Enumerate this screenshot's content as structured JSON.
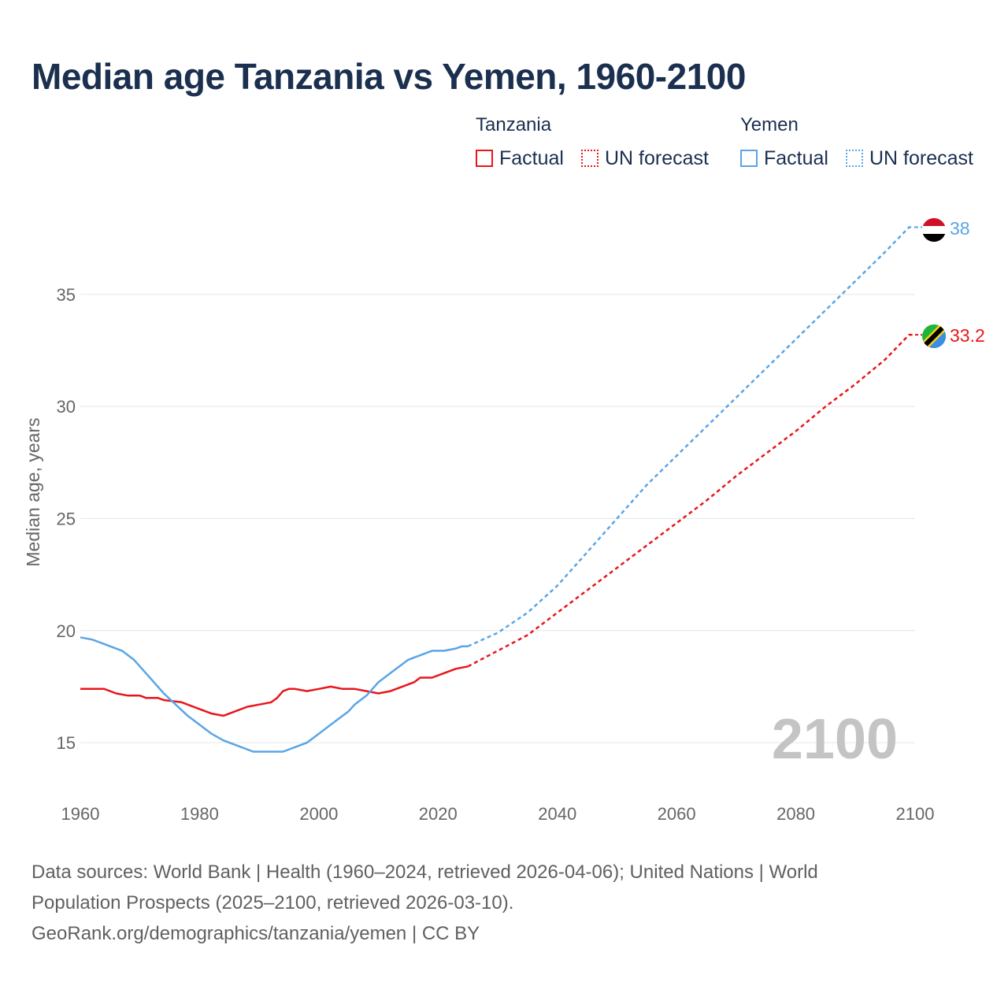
{
  "title": "Median age Tanzania vs Yemen, 1960-2100",
  "legend": {
    "tanzania": {
      "name": "Tanzania",
      "factual": "Factual",
      "forecast": "UN forecast"
    },
    "yemen": {
      "name": "Yemen",
      "factual": "Factual",
      "forecast": "UN forecast"
    }
  },
  "colors": {
    "tanzania": "#e8161a",
    "yemen": "#5aa5e6",
    "title": "#1b2f4f",
    "year_watermark": "#c4c4c4"
  },
  "source": {
    "line1": "Data sources: World Bank | Health (1960–2024, retrieved 2026-04-06); United Nations | World",
    "line2": "Population Prospects (2025–2100, retrieved 2026-03-10).",
    "line3": "GeoRank.org/demographics/tanzania/yemen | CC BY"
  },
  "chart_data": {
    "type": "line",
    "title": "Median age Tanzania vs Yemen, 1960-2100",
    "xlabel": "",
    "ylabel": "Median age, years",
    "xlim": [
      1960,
      2100
    ],
    "ylim": [
      13,
      39
    ],
    "x_ticks": [
      1960,
      1980,
      2000,
      2020,
      2040,
      2060,
      2080,
      2100
    ],
    "y_ticks": [
      15,
      20,
      25,
      30,
      35
    ],
    "grid": true,
    "current_year_label": "2100",
    "forecast_start": 2025,
    "series": [
      {
        "name": "Tanzania",
        "flag": "tanzania-flag",
        "end_label": "33.2",
        "points": [
          [
            1960,
            17.4
          ],
          [
            1964,
            17.4
          ],
          [
            1966,
            17.2
          ],
          [
            1968,
            17.1
          ],
          [
            1970,
            17.1
          ],
          [
            1971,
            17.0
          ],
          [
            1973,
            17.0
          ],
          [
            1974,
            16.9
          ],
          [
            1977,
            16.8
          ],
          [
            1980,
            16.5
          ],
          [
            1982,
            16.3
          ],
          [
            1984,
            16.2
          ],
          [
            1986,
            16.4
          ],
          [
            1988,
            16.6
          ],
          [
            1990,
            16.7
          ],
          [
            1992,
            16.8
          ],
          [
            1993,
            17.0
          ],
          [
            1994,
            17.3
          ],
          [
            1995,
            17.4
          ],
          [
            1996,
            17.4
          ],
          [
            1998,
            17.3
          ],
          [
            2000,
            17.4
          ],
          [
            2002,
            17.5
          ],
          [
            2004,
            17.4
          ],
          [
            2006,
            17.4
          ],
          [
            2008,
            17.3
          ],
          [
            2010,
            17.2
          ],
          [
            2012,
            17.3
          ],
          [
            2014,
            17.5
          ],
          [
            2016,
            17.7
          ],
          [
            2017,
            17.9
          ],
          [
            2019,
            17.9
          ],
          [
            2021,
            18.1
          ],
          [
            2023,
            18.3
          ],
          [
            2025,
            18.4
          ],
          [
            2030,
            19.1
          ],
          [
            2035,
            19.8
          ],
          [
            2040,
            20.8
          ],
          [
            2045,
            21.8
          ],
          [
            2050,
            22.8
          ],
          [
            2055,
            23.8
          ],
          [
            2060,
            24.8
          ],
          [
            2065,
            25.8
          ],
          [
            2070,
            26.9
          ],
          [
            2075,
            27.9
          ],
          [
            2080,
            28.9
          ],
          [
            2085,
            30.0
          ],
          [
            2090,
            31.0
          ],
          [
            2095,
            32.1
          ],
          [
            2099,
            33.2
          ],
          [
            2100,
            33.2
          ]
        ]
      },
      {
        "name": "Yemen",
        "flag": "yemen-flag",
        "end_label": "38",
        "points": [
          [
            1960,
            19.7
          ],
          [
            1962,
            19.6
          ],
          [
            1964,
            19.4
          ],
          [
            1967,
            19.1
          ],
          [
            1969,
            18.7
          ],
          [
            1970,
            18.4
          ],
          [
            1972,
            17.8
          ],
          [
            1974,
            17.2
          ],
          [
            1976,
            16.7
          ],
          [
            1978,
            16.2
          ],
          [
            1980,
            15.8
          ],
          [
            1982,
            15.4
          ],
          [
            1984,
            15.1
          ],
          [
            1986,
            14.9
          ],
          [
            1989,
            14.6
          ],
          [
            1991,
            14.6
          ],
          [
            1994,
            14.6
          ],
          [
            1996,
            14.8
          ],
          [
            1998,
            15.0
          ],
          [
            2000,
            15.4
          ],
          [
            2002,
            15.8
          ],
          [
            2004,
            16.2
          ],
          [
            2005,
            16.4
          ],
          [
            2006,
            16.7
          ],
          [
            2008,
            17.1
          ],
          [
            2010,
            17.7
          ],
          [
            2012,
            18.1
          ],
          [
            2015,
            18.7
          ],
          [
            2017,
            18.9
          ],
          [
            2019,
            19.1
          ],
          [
            2021,
            19.1
          ],
          [
            2023,
            19.2
          ],
          [
            2024,
            19.3
          ],
          [
            2025,
            19.3
          ],
          [
            2030,
            19.9
          ],
          [
            2035,
            20.8
          ],
          [
            2040,
            22.0
          ],
          [
            2045,
            23.5
          ],
          [
            2050,
            25.0
          ],
          [
            2055,
            26.5
          ],
          [
            2060,
            27.8
          ],
          [
            2065,
            29.1
          ],
          [
            2070,
            30.4
          ],
          [
            2075,
            31.7
          ],
          [
            2080,
            33.0
          ],
          [
            2085,
            34.3
          ],
          [
            2090,
            35.6
          ],
          [
            2095,
            36.9
          ],
          [
            2099,
            38.0
          ],
          [
            2100,
            38.0
          ]
        ]
      }
    ]
  }
}
